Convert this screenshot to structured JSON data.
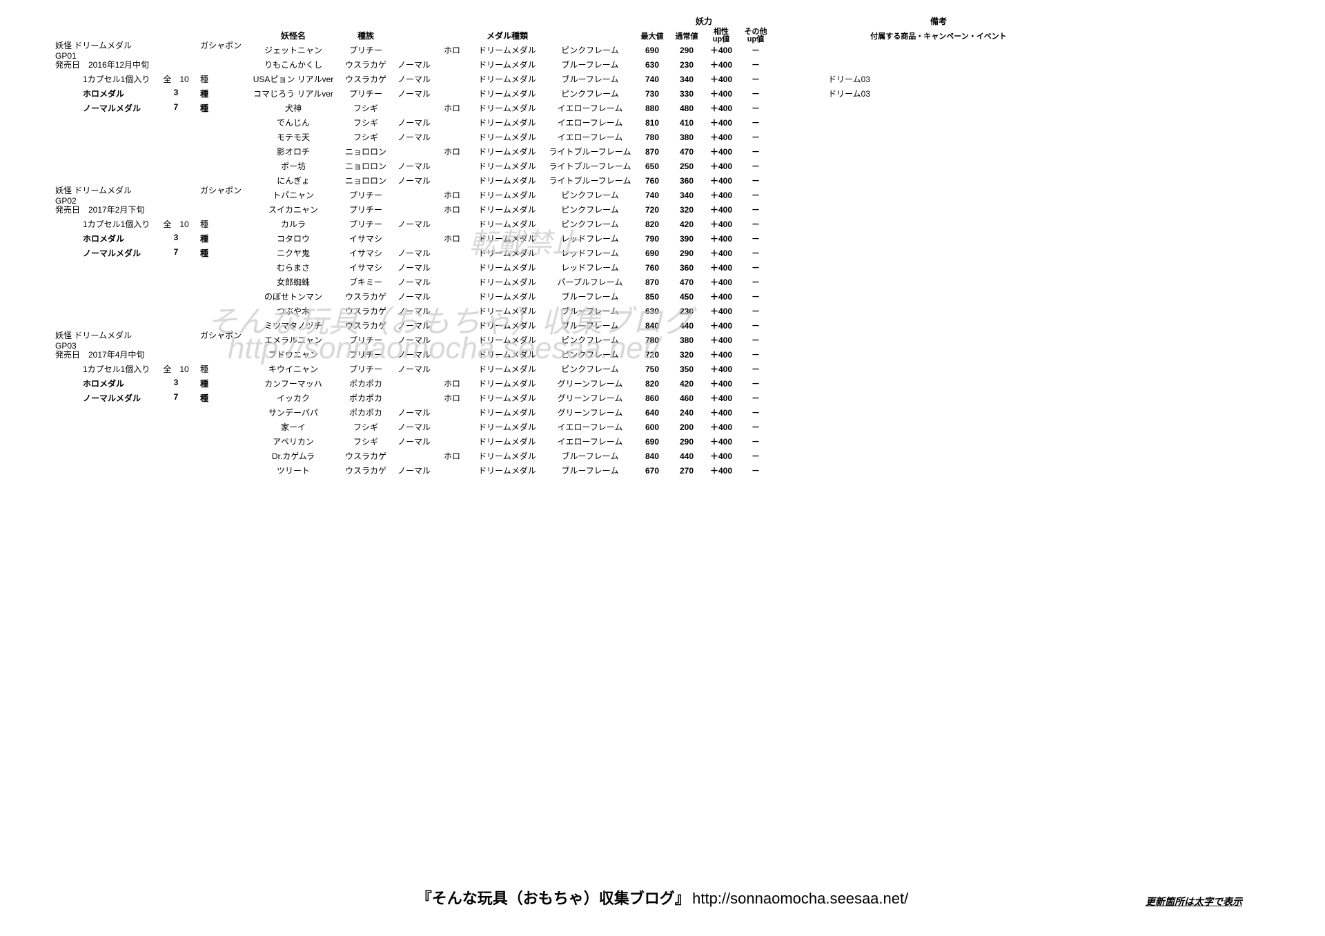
{
  "headers": {
    "youkai_name": "妖怪名",
    "tribe": "種族",
    "medal_type": "メダル種類",
    "youryoku": "妖力",
    "max": "最大値",
    "normal": "通常値",
    "affinity": "相性\nup値",
    "other": "その他\nup値",
    "remarks": "備考",
    "remarks_sub": "付属する商品・キャンペーン・イベント"
  },
  "groups": [
    {
      "left": [
        {
          "l1": "妖怪 ドリームメダル GP01",
          "l2": "",
          "l3": "ガシャポン",
          "bold": false
        },
        {
          "l1": "発売日　2016年12月中旬",
          "l2": "",
          "l3": "",
          "bold": false
        },
        {
          "l1": "1カプセル1個入り",
          "l2": "全　10",
          "l3": "種",
          "bold": false,
          "indent": true
        },
        {
          "l1": "ホロメダル",
          "l2": "3",
          "l3": "種",
          "bold": true,
          "indent": true
        },
        {
          "l1": "ノーマルメダル",
          "l2": "7",
          "l3": "種",
          "bold": true,
          "indent": true
        }
      ],
      "rows": [
        {
          "name": "ジェットニャン",
          "tribe": "プリチー",
          "nm": "",
          "holo": "ホロ",
          "mtype": "ドリームメダル",
          "frame": "ピンクフレーム",
          "max": "690",
          "norm": "290",
          "aff": "＋400",
          "oth": "－",
          "note": ""
        },
        {
          "name": "りもこんかくし",
          "tribe": "ウスラカゲ",
          "nm": "ノーマル",
          "holo": "",
          "mtype": "ドリームメダル",
          "frame": "ブルーフレーム",
          "max": "630",
          "norm": "230",
          "aff": "＋400",
          "oth": "－",
          "note": ""
        },
        {
          "name": "USAピョン リアルver",
          "tribe": "ウスラカゲ",
          "nm": "ノーマル",
          "holo": "",
          "mtype": "ドリームメダル",
          "frame": "ブルーフレーム",
          "max": "740",
          "norm": "340",
          "aff": "＋400",
          "oth": "－",
          "note": "ドリーム03"
        },
        {
          "name": "コマじろう リアルver",
          "tribe": "プリチー",
          "nm": "ノーマル",
          "holo": "",
          "mtype": "ドリームメダル",
          "frame": "ピンクフレーム",
          "max": "730",
          "norm": "330",
          "aff": "＋400",
          "oth": "－",
          "note": "ドリーム03"
        },
        {
          "name": "犬神",
          "tribe": "フシギ",
          "nm": "",
          "holo": "ホロ",
          "mtype": "ドリームメダル",
          "frame": "イエローフレーム",
          "max": "880",
          "norm": "480",
          "aff": "＋400",
          "oth": "－",
          "note": ""
        },
        {
          "name": "でんじん",
          "tribe": "フシギ",
          "nm": "ノーマル",
          "holo": "",
          "mtype": "ドリームメダル",
          "frame": "イエローフレーム",
          "max": "810",
          "norm": "410",
          "aff": "＋400",
          "oth": "－",
          "note": ""
        },
        {
          "name": "モテモ天",
          "tribe": "フシギ",
          "nm": "ノーマル",
          "holo": "",
          "mtype": "ドリームメダル",
          "frame": "イエローフレーム",
          "max": "780",
          "norm": "380",
          "aff": "＋400",
          "oth": "－",
          "note": ""
        },
        {
          "name": "影オロチ",
          "tribe": "ニョロロン",
          "nm": "",
          "holo": "ホロ",
          "mtype": "ドリームメダル",
          "frame": "ライトブルーフレーム",
          "max": "870",
          "norm": "470",
          "aff": "＋400",
          "oth": "－",
          "note": ""
        },
        {
          "name": "ポー坊",
          "tribe": "ニョロロン",
          "nm": "ノーマル",
          "holo": "",
          "mtype": "ドリームメダル",
          "frame": "ライトブルーフレーム",
          "max": "650",
          "norm": "250",
          "aff": "＋400",
          "oth": "－",
          "note": ""
        },
        {
          "name": "にんぎょ",
          "tribe": "ニョロロン",
          "nm": "ノーマル",
          "holo": "",
          "mtype": "ドリームメダル",
          "frame": "ライトブルーフレーム",
          "max": "760",
          "norm": "360",
          "aff": "＋400",
          "oth": "－",
          "note": ""
        }
      ]
    },
    {
      "left": [
        {
          "l1": "妖怪 ドリームメダル GP02",
          "l2": "",
          "l3": "ガシャポン",
          "bold": false
        },
        {
          "l1": "発売日　2017年2月下旬",
          "l2": "",
          "l3": "",
          "bold": false
        },
        {
          "l1": "1カプセル1個入り",
          "l2": "全　10",
          "l3": "種",
          "bold": false,
          "indent": true
        },
        {
          "l1": "ホロメダル",
          "l2": "3",
          "l3": "種",
          "bold": true,
          "indent": true
        },
        {
          "l1": "ノーマルメダル",
          "l2": "7",
          "l3": "種",
          "bold": true,
          "indent": true
        }
      ],
      "rows": [
        {
          "name": "トパニャン",
          "tribe": "プリチー",
          "nm": "",
          "holo": "ホロ",
          "mtype": "ドリームメダル",
          "frame": "ピンクフレーム",
          "max": "740",
          "norm": "340",
          "aff": "＋400",
          "oth": "－",
          "note": ""
        },
        {
          "name": "スイカニャン",
          "tribe": "プリチー",
          "nm": "",
          "holo": "ホロ",
          "mtype": "ドリームメダル",
          "frame": "ピンクフレーム",
          "max": "720",
          "norm": "320",
          "aff": "＋400",
          "oth": "－",
          "note": ""
        },
        {
          "name": "カルラ",
          "tribe": "プリチー",
          "nm": "ノーマル",
          "holo": "",
          "mtype": "ドリームメダル",
          "frame": "ピンクフレーム",
          "max": "820",
          "norm": "420",
          "aff": "＋400",
          "oth": "－",
          "note": ""
        },
        {
          "name": "コタロウ",
          "tribe": "イサマシ",
          "nm": "",
          "holo": "ホロ",
          "mtype": "ドリームメダル",
          "frame": "レッドフレーム",
          "max": "790",
          "norm": "390",
          "aff": "＋400",
          "oth": "－",
          "note": ""
        },
        {
          "name": "ニクヤ鬼",
          "tribe": "イサマシ",
          "nm": "ノーマル",
          "holo": "",
          "mtype": "ドリームメダル",
          "frame": "レッドフレーム",
          "max": "690",
          "norm": "290",
          "aff": "＋400",
          "oth": "－",
          "note": ""
        },
        {
          "name": "むらまさ",
          "tribe": "イサマシ",
          "nm": "ノーマル",
          "holo": "",
          "mtype": "ドリームメダル",
          "frame": "レッドフレーム",
          "max": "760",
          "norm": "360",
          "aff": "＋400",
          "oth": "－",
          "note": ""
        },
        {
          "name": "女郎蜘蛛",
          "tribe": "ブキミー",
          "nm": "ノーマル",
          "holo": "",
          "mtype": "ドリームメダル",
          "frame": "パープルフレーム",
          "max": "870",
          "norm": "470",
          "aff": "＋400",
          "oth": "－",
          "note": ""
        },
        {
          "name": "のぼせトンマン",
          "tribe": "ウスラカゲ",
          "nm": "ノーマル",
          "holo": "",
          "mtype": "ドリームメダル",
          "frame": "ブルーフレーム",
          "max": "850",
          "norm": "450",
          "aff": "＋400",
          "oth": "－",
          "note": ""
        },
        {
          "name": "つぶや木",
          "tribe": "ウスラカゲ",
          "nm": "ノーマル",
          "holo": "",
          "mtype": "ドリームメダル",
          "frame": "ブルーフレーム",
          "max": "630",
          "norm": "230",
          "aff": "＋400",
          "oth": "－",
          "note": ""
        },
        {
          "name": "ミツマタノヅチ",
          "tribe": "ウスラカゲ",
          "nm": "ノーマル",
          "holo": "",
          "mtype": "ドリームメダル",
          "frame": "ブルーフレーム",
          "max": "840",
          "norm": "440",
          "aff": "＋400",
          "oth": "－",
          "note": ""
        }
      ]
    },
    {
      "left": [
        {
          "l1": "妖怪 ドリームメダル GP03",
          "l2": "",
          "l3": "ガシャポン",
          "bold": false
        },
        {
          "l1": "発売日　2017年4月中旬",
          "l2": "",
          "l3": "",
          "bold": false
        },
        {
          "l1": "1カプセル1個入り",
          "l2": "全　10",
          "l3": "種",
          "bold": false,
          "indent": true
        },
        {
          "l1": "ホロメダル",
          "l2": "3",
          "l3": "種",
          "bold": true,
          "indent": true
        },
        {
          "l1": "ノーマルメダル",
          "l2": "7",
          "l3": "種",
          "bold": true,
          "indent": true
        }
      ],
      "rows": [
        {
          "name": "エメラルニャン",
          "tribe": "プリチー",
          "nm": "ノーマル",
          "holo": "",
          "mtype": "ドリームメダル",
          "frame": "ピンクフレーム",
          "max": "780",
          "norm": "380",
          "aff": "＋400",
          "oth": "－",
          "note": ""
        },
        {
          "name": "ブドウニャン",
          "tribe": "プリチー",
          "nm": "ノーマル",
          "holo": "",
          "mtype": "ドリームメダル",
          "frame": "ピンクフレーム",
          "max": "720",
          "norm": "320",
          "aff": "＋400",
          "oth": "－",
          "note": ""
        },
        {
          "name": "キウイニャン",
          "tribe": "プリチー",
          "nm": "ノーマル",
          "holo": "",
          "mtype": "ドリームメダル",
          "frame": "ピンクフレーム",
          "max": "750",
          "norm": "350",
          "aff": "＋400",
          "oth": "－",
          "note": ""
        },
        {
          "name": "カンフーマッハ",
          "tribe": "ポカポカ",
          "nm": "",
          "holo": "ホロ",
          "mtype": "ドリームメダル",
          "frame": "グリーンフレーム",
          "max": "820",
          "norm": "420",
          "aff": "＋400",
          "oth": "－",
          "note": ""
        },
        {
          "name": "イッカク",
          "tribe": "ポカポカ",
          "nm": "",
          "holo": "ホロ",
          "mtype": "ドリームメダル",
          "frame": "グリーンフレーム",
          "max": "860",
          "norm": "460",
          "aff": "＋400",
          "oth": "－",
          "note": ""
        },
        {
          "name": "サンデーパパ",
          "tribe": "ポカポカ",
          "nm": "ノーマル",
          "holo": "",
          "mtype": "ドリームメダル",
          "frame": "グリーンフレーム",
          "max": "640",
          "norm": "240",
          "aff": "＋400",
          "oth": "－",
          "note": ""
        },
        {
          "name": "家ーイ",
          "tribe": "フシギ",
          "nm": "ノーマル",
          "holo": "",
          "mtype": "ドリームメダル",
          "frame": "イエローフレーム",
          "max": "600",
          "norm": "200",
          "aff": "＋400",
          "oth": "－",
          "note": ""
        },
        {
          "name": "アペリカン",
          "tribe": "フシギ",
          "nm": "ノーマル",
          "holo": "",
          "mtype": "ドリームメダル",
          "frame": "イエローフレーム",
          "max": "690",
          "norm": "290",
          "aff": "＋400",
          "oth": "－",
          "note": ""
        },
        {
          "name": "Dr.カゲムラ",
          "tribe": "ウスラカゲ",
          "nm": "",
          "holo": "ホロ",
          "mtype": "ドリームメダル",
          "frame": "ブルーフレーム",
          "max": "840",
          "norm": "440",
          "aff": "＋400",
          "oth": "－",
          "note": ""
        },
        {
          "name": "ツリート",
          "tribe": "ウスラカゲ",
          "nm": "ノーマル",
          "holo": "",
          "mtype": "ドリームメダル",
          "frame": "ブルーフレーム",
          "max": "670",
          "norm": "270",
          "aff": "＋400",
          "oth": "－",
          "note": ""
        }
      ]
    }
  ],
  "watermarks": {
    "wm1": "転載禁止",
    "wm2": "そんな玩具（おもちゃ）収集ブログ",
    "wm3": "http://sonnaomocha.seesaa.net/"
  },
  "footer": {
    "title": "『そんな玩具（おもちゃ）収集ブログ』",
    "url": "http://sonnaomocha.seesaa.net/",
    "note": "更新箇所は太字で表示"
  }
}
